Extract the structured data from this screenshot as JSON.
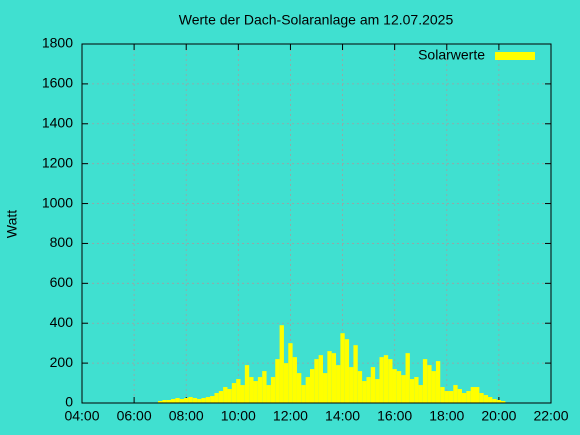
{
  "chart_data": {
    "type": "bar",
    "title": "Werte der Dach-Solaranlage am 12.07.2025",
    "y_label": "Watt",
    "legend": "top-right",
    "grid": true,
    "xlim": [
      240,
      1320
    ],
    "xticks": [
      {
        "value": 240,
        "label": "04:00"
      },
      {
        "value": 360,
        "label": "06:00"
      },
      {
        "value": 480,
        "label": "08:00"
      },
      {
        "value": 600,
        "label": "10:00"
      },
      {
        "value": 720,
        "label": "12:00"
      },
      {
        "value": 840,
        "label": "14:00"
      },
      {
        "value": 960,
        "label": "16:00"
      },
      {
        "value": 1080,
        "label": "18:00"
      },
      {
        "value": 1200,
        "label": "20:00"
      },
      {
        "value": 1320,
        "label": "22:00"
      }
    ],
    "ylim": [
      0,
      1800
    ],
    "yticks": [
      0,
      200,
      400,
      600,
      800,
      1000,
      1200,
      1400,
      1600,
      1800
    ],
    "x": [
      420,
      430,
      440,
      450,
      460,
      470,
      480,
      490,
      500,
      510,
      520,
      530,
      540,
      550,
      560,
      570,
      580,
      590,
      600,
      610,
      620,
      630,
      640,
      650,
      660,
      670,
      680,
      690,
      700,
      710,
      720,
      730,
      740,
      750,
      760,
      770,
      780,
      790,
      800,
      810,
      820,
      830,
      840,
      850,
      860,
      870,
      880,
      890,
      900,
      910,
      920,
      930,
      940,
      950,
      960,
      970,
      980,
      990,
      1000,
      1010,
      1020,
      1030,
      1040,
      1050,
      1060,
      1070,
      1080,
      1090,
      1100,
      1110,
      1120,
      1130,
      1140,
      1150,
      1160,
      1170,
      1180,
      1190,
      1200,
      1210
    ],
    "series": [
      {
        "name": "Solarwerte",
        "color": "#ffff00",
        "values": [
          10,
          15,
          15,
          20,
          25,
          20,
          25,
          30,
          25,
          20,
          25,
          30,
          35,
          50,
          60,
          80,
          70,
          100,
          120,
          90,
          190,
          130,
          110,
          130,
          160,
          90,
          130,
          220,
          390,
          200,
          300,
          230,
          150,
          90,
          130,
          170,
          220,
          240,
          150,
          260,
          250,
          190,
          350,
          320,
          180,
          290,
          160,
          110,
          130,
          180,
          120,
          230,
          240,
          220,
          170,
          160,
          140,
          250,
          120,
          130,
          90,
          220,
          190,
          160,
          210,
          80,
          60,
          60,
          90,
          70,
          50,
          60,
          80,
          80,
          50,
          40,
          30,
          20,
          15,
          10
        ]
      }
    ]
  }
}
